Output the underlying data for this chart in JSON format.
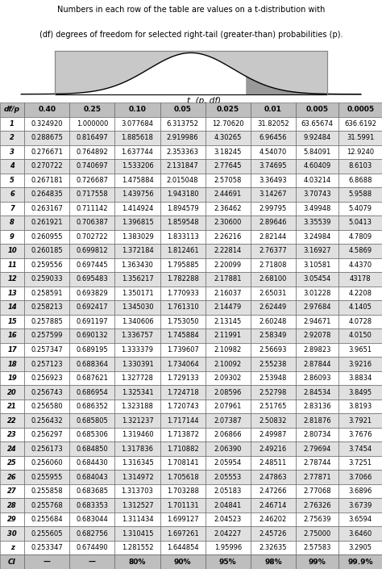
{
  "title_line1": "Numbers in each row of the table are values on a t-distribution with",
  "title_line2": "(df) degrees of freedom for selected right-tail (greater-than) probabilities (p).",
  "col_headers": [
    "df/p",
    "0.40",
    "0.25",
    "0.10",
    "0.05",
    "0.025",
    "0.01",
    "0.005",
    "0.0005"
  ],
  "rows": [
    [
      "1",
      "0.324920",
      "1.000000",
      "3.077684",
      "6.313752",
      "12.70620",
      "31.82052",
      "63.65674",
      "636.6192"
    ],
    [
      "2",
      "0.288675",
      "0.816497",
      "1.885618",
      "2.919986",
      "4.30265",
      "6.96456",
      "9.92484",
      "31.5991"
    ],
    [
      "3",
      "0.276671",
      "0.764892",
      "1.637744",
      "2.353363",
      "3.18245",
      "4.54070",
      "5.84091",
      "12.9240"
    ],
    [
      "4",
      "0.270722",
      "0.740697",
      "1.533206",
      "2.131847",
      "2.77645",
      "3.74695",
      "4.60409",
      "8.6103"
    ],
    [
      "5",
      "0.267181",
      "0.726687",
      "1.475884",
      "2.015048",
      "2.57058",
      "3.36493",
      "4.03214",
      "6.8688"
    ],
    [
      "6",
      "0.264835",
      "0.717558",
      "1.439756",
      "1.943180",
      "2.44691",
      "3.14267",
      "3.70743",
      "5.9588"
    ],
    [
      "7",
      "0.263167",
      "0.711142",
      "1.414924",
      "1.894579",
      "2.36462",
      "2.99795",
      "3.49948",
      "5.4079"
    ],
    [
      "8",
      "0.261921",
      "0.706387",
      "1.396815",
      "1.859548",
      "2.30600",
      "2.89646",
      "3.35539",
      "5.0413"
    ],
    [
      "9",
      "0.260955",
      "0.702722",
      "1.383029",
      "1.833113",
      "2.26216",
      "2.82144",
      "3.24984",
      "4.7809"
    ],
    [
      "10",
      "0.260185",
      "0.699812",
      "1.372184",
      "1.812461",
      "2.22814",
      "2.76377",
      "3.16927",
      "4.5869"
    ],
    [
      "11",
      "0.259556",
      "0.697445",
      "1.363430",
      "1.795885",
      "2.20099",
      "2.71808",
      "3.10581",
      "4.4370"
    ],
    [
      "12",
      "0.259033",
      "0.695483",
      "1.356217",
      "1.782288",
      "2.17881",
      "2.68100",
      "3.05454",
      "43178"
    ],
    [
      "13",
      "0.258591",
      "0.693829",
      "1.350171",
      "1.770933",
      "2.16037",
      "2.65031",
      "3.01228",
      "4.2208"
    ],
    [
      "14",
      "0.258213",
      "0.692417",
      "1.345030",
      "1.761310",
      "2.14479",
      "2.62449",
      "2.97684",
      "4.1405"
    ],
    [
      "15",
      "0.257885",
      "0.691197",
      "1.340606",
      "1.753050",
      "2.13145",
      "2.60248",
      "2.94671",
      "4.0728"
    ],
    [
      "16",
      "0.257599",
      "0.690132",
      "1.336757",
      "1.745884",
      "2.11991",
      "2.58349",
      "2.92078",
      "4.0150"
    ],
    [
      "17",
      "0.257347",
      "0.689195",
      "1.333379",
      "1.739607",
      "2.10982",
      "2.56693",
      "2.89823",
      "3.9651"
    ],
    [
      "18",
      "0.257123",
      "0.688364",
      "1.330391",
      "1.734064",
      "2.10092",
      "2.55238",
      "2.87844",
      "3.9216"
    ],
    [
      "19",
      "0.256923",
      "0.687621",
      "1.327728",
      "1.729133",
      "2.09302",
      "2.53948",
      "2.86093",
      "3.8834"
    ],
    [
      "20",
      "0.256743",
      "0.686954",
      "1.325341",
      "1.724718",
      "2.08596",
      "2.52798",
      "2.84534",
      "3.8495"
    ],
    [
      "21",
      "0.256580",
      "0.686352",
      "1.323188",
      "1.720743",
      "2.07961",
      "2.51765",
      "2.83136",
      "3.8193"
    ],
    [
      "22",
      "0.256432",
      "0.685805",
      "1.321237",
      "1.717144",
      "2.07387",
      "2.50832",
      "2.81876",
      "3.7921"
    ],
    [
      "23",
      "0.256297",
      "0.685306",
      "1.319460",
      "1.713872",
      "2.06866",
      "2.49987",
      "2.80734",
      "3.7676"
    ],
    [
      "24",
      "0.256173",
      "0.684850",
      "1.317836",
      "1.710882",
      "2.06390",
      "2.49216",
      "2.79694",
      "3.7454"
    ],
    [
      "25",
      "0.256060",
      "0.684430",
      "1.316345",
      "1.708141",
      "2.05954",
      "2.48511",
      "2.78744",
      "3.7251"
    ],
    [
      "26",
      "0.255955",
      "0.684043",
      "1.314972",
      "1.705618",
      "2.05553",
      "2.47863",
      "2.77871",
      "3.7066"
    ],
    [
      "27",
      "0.255858",
      "0.683685",
      "1.313703",
      "1.703288",
      "2.05183",
      "2.47266",
      "2.77068",
      "3.6896"
    ],
    [
      "28",
      "0.255768",
      "0.683353",
      "1.312527",
      "1.701131",
      "2.04841",
      "2.46714",
      "2.76326",
      "3.6739"
    ],
    [
      "29",
      "0.255684",
      "0.683044",
      "1.311434",
      "1.699127",
      "2.04523",
      "2.46202",
      "2.75639",
      "3.6594"
    ],
    [
      "30",
      "0.255605",
      "0.682756",
      "1.310415",
      "1.697261",
      "2.04227",
      "2.45726",
      "2.75000",
      "3.6460"
    ],
    [
      "z",
      "0.253347",
      "0.674490",
      "1.281552",
      "1.644854",
      "1.95996",
      "2.32635",
      "2.57583",
      "3.2905"
    ]
  ],
  "ci_row": [
    "CI",
    "—",
    "—",
    "80%",
    "90%",
    "95%",
    "98%",
    "99%",
    "99.9%"
  ],
  "header_bg": "#bebebe",
  "odd_row_bg": "#ffffff",
  "even_row_bg": "#e0e0e0",
  "curve_label": "t  (p, df)",
  "curve_bg": "#c8c8c8",
  "curve_fill": "#ffffff",
  "curve_shade": "#999999",
  "figsize": [
    4.74,
    7.05
  ],
  "dpi": 100
}
